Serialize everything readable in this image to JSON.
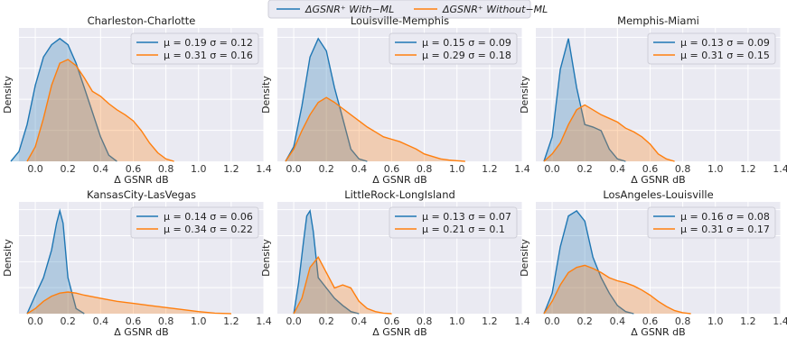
{
  "figure_legend": {
    "entries": [
      {
        "label": "ΔGSNR⁺ With−ML",
        "color": "#1f77b4"
      },
      {
        "label": "ΔGSNR⁺ Without−ML",
        "color": "#ff7f0e"
      }
    ]
  },
  "chart_data": [
    {
      "type": "area",
      "title": "Charleston-Charlotte",
      "xlabel": "Δ GSNR dB",
      "ylabel": "Density",
      "xlim": [
        -0.1,
        1.4
      ],
      "xticks": [
        "0.0",
        "0.2",
        "0.4",
        "0.6",
        "0.8",
        "1.0",
        "1.2",
        "1.4"
      ],
      "grid": true,
      "legend_position": "top-right",
      "series": [
        {
          "legend": "μ =  0.19 σ = 0.12",
          "color": "#1f77b4",
          "x": [
            -0.15,
            -0.1,
            -0.05,
            0,
            0.05,
            0.1,
            0.15,
            0.2,
            0.25,
            0.3,
            0.35,
            0.4,
            0.45,
            0.5
          ],
          "y": [
            0,
            0.08,
            0.3,
            0.62,
            0.85,
            0.95,
            1.0,
            0.95,
            0.8,
            0.6,
            0.4,
            0.2,
            0.05,
            0
          ]
        },
        {
          "legend": "μ =  0.31 σ = 0.16",
          "color": "#ff7f0e",
          "x": [
            -0.05,
            0,
            0.05,
            0.1,
            0.15,
            0.2,
            0.25,
            0.3,
            0.35,
            0.4,
            0.45,
            0.5,
            0.55,
            0.6,
            0.65,
            0.7,
            0.75,
            0.8,
            0.85
          ],
          "y": [
            0,
            0.12,
            0.35,
            0.62,
            0.8,
            0.83,
            0.78,
            0.68,
            0.57,
            0.53,
            0.47,
            0.42,
            0.38,
            0.33,
            0.25,
            0.15,
            0.07,
            0.02,
            0
          ]
        }
      ]
    },
    {
      "type": "area",
      "title": "Louisville-Memphis",
      "xlabel": "Δ GSNR dB",
      "ylabel": "Density",
      "xlim": [
        -0.1,
        1.4
      ],
      "xticks": [
        "0.0",
        "0.2",
        "0.4",
        "0.6",
        "0.8",
        "1.0",
        "1.2",
        "1.4"
      ],
      "grid": true,
      "legend_position": "top-right",
      "series": [
        {
          "legend": "μ =  0.15 σ = 0.09",
          "color": "#1f77b4",
          "x": [
            -0.05,
            0,
            0.05,
            0.1,
            0.15,
            0.2,
            0.25,
            0.3,
            0.35,
            0.4,
            0.45
          ],
          "y": [
            0,
            0.12,
            0.45,
            0.85,
            1.0,
            0.9,
            0.6,
            0.35,
            0.1,
            0.02,
            0
          ]
        },
        {
          "legend": "μ =  0.29 σ = 0.18",
          "color": "#ff7f0e",
          "x": [
            -0.05,
            0,
            0.05,
            0.1,
            0.15,
            0.2,
            0.25,
            0.3,
            0.35,
            0.4,
            0.45,
            0.5,
            0.55,
            0.6,
            0.65,
            0.7,
            0.75,
            0.8,
            0.85,
            0.9,
            0.95,
            1.0,
            1.05
          ],
          "y": [
            0,
            0.1,
            0.25,
            0.38,
            0.48,
            0.52,
            0.48,
            0.43,
            0.38,
            0.33,
            0.28,
            0.24,
            0.2,
            0.18,
            0.16,
            0.13,
            0.1,
            0.06,
            0.04,
            0.02,
            0.01,
            0.005,
            0
          ]
        }
      ]
    },
    {
      "type": "area",
      "title": "Memphis-Miami",
      "xlabel": "Δ GSNR dB",
      "ylabel": "Density",
      "xlim": [
        -0.1,
        1.4
      ],
      "xticks": [
        "0.0",
        "0.2",
        "0.4",
        "0.6",
        "0.8",
        "1.0",
        "1.2",
        "1.4"
      ],
      "grid": true,
      "legend_position": "top-right",
      "series": [
        {
          "legend": "μ =  0.13 σ = 0.09",
          "color": "#1f77b4",
          "x": [
            -0.05,
            0,
            0.05,
            0.1,
            0.15,
            0.2,
            0.25,
            0.3,
            0.35,
            0.4,
            0.45
          ],
          "y": [
            0,
            0.2,
            0.75,
            1.0,
            0.6,
            0.3,
            0.28,
            0.25,
            0.1,
            0.02,
            0
          ]
        },
        {
          "legend": "μ =  0.31 σ = 0.15",
          "color": "#ff7f0e",
          "x": [
            -0.05,
            0,
            0.05,
            0.1,
            0.15,
            0.2,
            0.25,
            0.3,
            0.35,
            0.4,
            0.45,
            0.5,
            0.55,
            0.6,
            0.65,
            0.7,
            0.75
          ],
          "y": [
            0,
            0.06,
            0.15,
            0.3,
            0.42,
            0.46,
            0.42,
            0.38,
            0.35,
            0.32,
            0.27,
            0.24,
            0.2,
            0.14,
            0.06,
            0.02,
            0
          ]
        }
      ]
    },
    {
      "type": "area",
      "title": "KansasCity-LasVegas",
      "xlabel": "Δ GSNR dB",
      "ylabel": "Density",
      "xlim": [
        -0.1,
        1.4
      ],
      "xticks": [
        "0.0",
        "0.2",
        "0.4",
        "0.6",
        "0.8",
        "1.0",
        "1.2",
        "1.4"
      ],
      "grid": true,
      "legend_position": "top-right",
      "series": [
        {
          "legend": "μ =  0.14 σ = 0.06",
          "color": "#1f77b4",
          "x": [
            -0.05,
            0,
            0.05,
            0.1,
            0.13,
            0.15,
            0.17,
            0.2,
            0.25,
            0.3
          ],
          "y": [
            0,
            0.18,
            0.35,
            0.62,
            0.88,
            1.0,
            0.88,
            0.35,
            0.05,
            0
          ]
        },
        {
          "legend": "μ =  0.34 σ = 0.22",
          "color": "#ff7f0e",
          "x": [
            -0.05,
            0,
            0.05,
            0.1,
            0.15,
            0.2,
            0.25,
            0.3,
            0.4,
            0.5,
            0.6,
            0.7,
            0.8,
            0.9,
            1.0,
            1.1,
            1.2
          ],
          "y": [
            0,
            0.05,
            0.12,
            0.17,
            0.2,
            0.21,
            0.2,
            0.18,
            0.15,
            0.12,
            0.1,
            0.08,
            0.06,
            0.04,
            0.02,
            0.005,
            0
          ]
        }
      ]
    },
    {
      "type": "area",
      "title": "LittleRock-LongIsland",
      "xlabel": "Δ GSNR dB",
      "ylabel": "Density",
      "xlim": [
        -0.1,
        1.4
      ],
      "xticks": [
        "0.0",
        "0.2",
        "0.4",
        "0.6",
        "0.8",
        "1.0",
        "1.2",
        "1.4"
      ],
      "grid": true,
      "legend_position": "top-right",
      "series": [
        {
          "legend": "μ =  0.13 σ = 0.07",
          "color": "#1f77b4",
          "x": [
            0,
            0.03,
            0.06,
            0.08,
            0.1,
            0.12,
            0.15,
            0.2,
            0.25,
            0.3,
            0.35,
            0.4
          ],
          "y": [
            0,
            0.3,
            0.7,
            0.95,
            1.0,
            0.8,
            0.35,
            0.25,
            0.15,
            0.08,
            0.02,
            0
          ]
        },
        {
          "legend": "μ =  0.21 σ = 0.1",
          "color": "#ff7f0e",
          "x": [
            0,
            0.05,
            0.1,
            0.15,
            0.2,
            0.25,
            0.3,
            0.35,
            0.4,
            0.45,
            0.5,
            0.55,
            0.6
          ],
          "y": [
            0,
            0.15,
            0.45,
            0.55,
            0.4,
            0.25,
            0.28,
            0.25,
            0.12,
            0.05,
            0.02,
            0.005,
            0
          ]
        }
      ]
    },
    {
      "type": "area",
      "title": "LosAngeles-Louisville",
      "xlabel": "Δ GSNR dB",
      "ylabel": "Density",
      "xlim": [
        -0.1,
        1.4
      ],
      "xticks": [
        "0.0",
        "0.2",
        "0.4",
        "0.6",
        "0.8",
        "1.0",
        "1.2",
        "1.4"
      ],
      "grid": true,
      "legend_position": "top-right",
      "series": [
        {
          "legend": "μ =  0.16 σ = 0.08",
          "color": "#1f77b4",
          "x": [
            -0.05,
            0,
            0.05,
            0.1,
            0.15,
            0.2,
            0.25,
            0.3,
            0.35,
            0.4,
            0.45,
            0.5
          ],
          "y": [
            0,
            0.2,
            0.65,
            0.95,
            1.0,
            0.9,
            0.55,
            0.35,
            0.2,
            0.08,
            0.02,
            0
          ]
        },
        {
          "legend": "μ =  0.31 σ = 0.17",
          "color": "#ff7f0e",
          "x": [
            -0.05,
            0,
            0.05,
            0.1,
            0.15,
            0.2,
            0.25,
            0.3,
            0.35,
            0.4,
            0.45,
            0.5,
            0.55,
            0.6,
            0.65,
            0.7,
            0.75,
            0.8,
            0.85
          ],
          "y": [
            0,
            0.12,
            0.28,
            0.4,
            0.45,
            0.47,
            0.44,
            0.4,
            0.35,
            0.32,
            0.3,
            0.27,
            0.23,
            0.18,
            0.12,
            0.07,
            0.03,
            0.01,
            0
          ]
        }
      ]
    }
  ]
}
